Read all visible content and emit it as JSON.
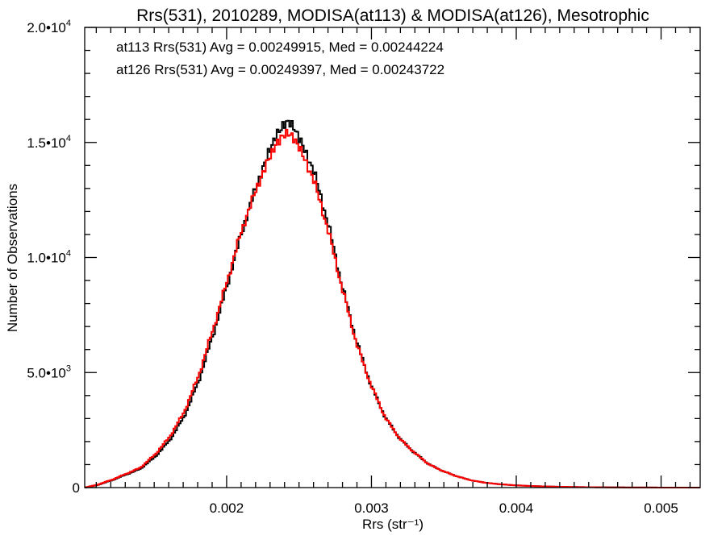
{
  "chart_data": {
    "type": "line",
    "title": "Rrs(531), 2010289, MODISA(at113) & MODISA(at126), Mesotrophic",
    "xlabel": "Rrs (str⁻¹)",
    "ylabel": "Number of Observations",
    "xlim": [
      0.00102,
      0.00527
    ],
    "ylim": [
      0,
      20000
    ],
    "grid": false,
    "x_ticks": [
      "0.002",
      "0.003",
      "0.004",
      "0.005"
    ],
    "y_ticks": [
      {
        "value": 0,
        "label": "0"
      },
      {
        "value": 5000,
        "label": "5.0•10",
        "exp": "3"
      },
      {
        "value": 10000,
        "label": "1.0•10",
        "exp": "4"
      },
      {
        "value": 15000,
        "label": "1.5•10",
        "exp": "4"
      },
      {
        "value": 20000,
        "label": "2.0•10",
        "exp": "4"
      }
    ],
    "annotations": [
      {
        "text": "at113 Rrs(531) Avg = 0.00249915, Med = 0.00244224",
        "color": "#000000"
      },
      {
        "text": "at126 Rrs(531) Avg = 0.00249397, Med = 0.00243722",
        "color": "#ff0000"
      }
    ],
    "series": [
      {
        "color": "#000000",
        "x": [
          0.00102,
          0.0011,
          0.0012,
          0.0013,
          0.0014,
          0.0015,
          0.0016,
          0.0017,
          0.0018,
          0.0019,
          0.002,
          0.0021,
          0.0022,
          0.0023,
          0.00235,
          0.0024,
          0.00243,
          0.00246,
          0.0025,
          0.0026,
          0.0027,
          0.0028,
          0.0029,
          0.003,
          0.0031,
          0.0032,
          0.0033,
          0.0034,
          0.0035,
          0.0036,
          0.0037,
          0.0038,
          0.0039,
          0.004,
          0.0041,
          0.0042,
          0.0043,
          0.0044,
          0.0045,
          0.0046,
          0.0047,
          0.0048,
          0.0049,
          0.005,
          0.0051,
          0.0052,
          0.00527
        ],
        "y": [
          0,
          100,
          300,
          550,
          800,
          1300,
          2000,
          3000,
          4500,
          6500,
          8700,
          11000,
          13000,
          14700,
          15400,
          15800,
          15900,
          15700,
          15200,
          13800,
          11500,
          8700,
          6300,
          4400,
          3000,
          2100,
          1500,
          1000,
          700,
          470,
          300,
          200,
          140,
          95,
          70,
          50,
          35,
          25,
          18,
          12,
          8,
          5,
          3,
          2,
          1,
          0,
          0
        ]
      },
      {
        "color": "#ff0000",
        "x": [
          0.00102,
          0.0011,
          0.0012,
          0.0013,
          0.0014,
          0.0015,
          0.0016,
          0.0017,
          0.0018,
          0.0019,
          0.002,
          0.0021,
          0.0022,
          0.0023,
          0.00235,
          0.0024,
          0.00243,
          0.00246,
          0.0025,
          0.0026,
          0.0027,
          0.0028,
          0.0029,
          0.003,
          0.0031,
          0.0032,
          0.0033,
          0.0034,
          0.0035,
          0.0036,
          0.0037,
          0.0038,
          0.0039,
          0.004,
          0.0041,
          0.0042,
          0.0043,
          0.0044,
          0.0045,
          0.0046,
          0.0047,
          0.0048,
          0.0049,
          0.005,
          0.0051,
          0.0052,
          0.00527
        ],
        "y": [
          0,
          110,
          320,
          580,
          850,
          1400,
          2150,
          3200,
          4750,
          6750,
          8900,
          11100,
          12900,
          14400,
          15000,
          15350,
          15400,
          15200,
          14800,
          13400,
          11200,
          8600,
          6200,
          4400,
          3000,
          2100,
          1500,
          1000,
          700,
          470,
          300,
          200,
          140,
          95,
          70,
          50,
          35,
          25,
          18,
          12,
          8,
          5,
          3,
          2,
          1,
          0,
          0
        ]
      }
    ]
  }
}
